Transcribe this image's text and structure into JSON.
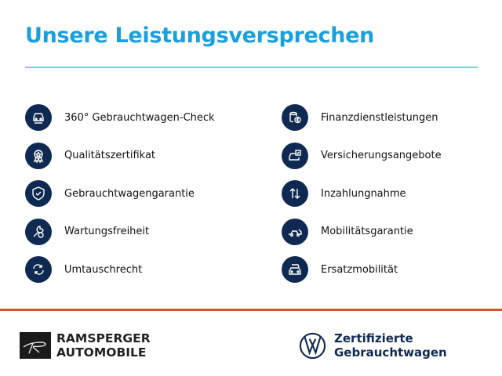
{
  "header": {
    "title": "Unsere Leistungsversprechen"
  },
  "colors": {
    "title": "#1aa0dc",
    "icon_bg": "#0f2a52",
    "divider": "#d25527"
  },
  "left_items": [
    {
      "label": "360° Gebrauchtwagen-Check",
      "icon": "car-check-icon"
    },
    {
      "label": "Qualitätszertifikat",
      "icon": "award-icon"
    },
    {
      "label": "Gebrauchtwagengarantie",
      "icon": "shield-check-icon"
    },
    {
      "label": "Wartungsfreiheit",
      "icon": "wrench-icon"
    },
    {
      "label": "Umtauschrecht",
      "icon": "exchange-icon"
    }
  ],
  "right_items": [
    {
      "label": "Finanzdienstleistungen",
      "icon": "coins-euro-icon"
    },
    {
      "label": "Versicherungsangebote",
      "icon": "car-insurance-icon"
    },
    {
      "label": "Inzahlungnahme",
      "icon": "up-down-arrows-icon"
    },
    {
      "label": "Mobilitätsgarantie",
      "icon": "tow-truck-icon"
    },
    {
      "label": "Ersatzmobilität",
      "icon": "replacement-car-icon"
    }
  ],
  "footer": {
    "dealer_line1": "RAMSPERGER",
    "dealer_line2": "AUTOMOBILE",
    "vw_line1": "Zertifizierte",
    "vw_line2": "Gebrauchtwagen"
  }
}
